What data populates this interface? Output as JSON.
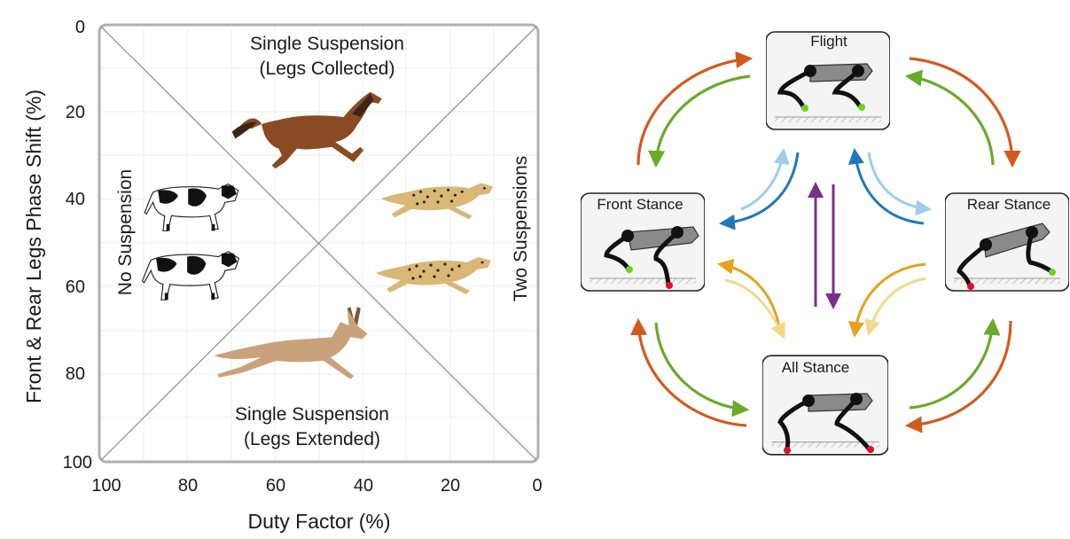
{
  "gait_plot": {
    "ylabel": "Front & Rear Legs Phase Shift (%)",
    "xlabel": "Duty Factor (%)",
    "y_ticks": [
      "0",
      "20",
      "40",
      "60",
      "80",
      "100"
    ],
    "x_ticks": [
      "100",
      "80",
      "60",
      "40",
      "20",
      "0"
    ],
    "regions": {
      "top_line1": "Single Suspension",
      "top_line2": "(Legs Collected)",
      "bottom_line1": "Single Suspension",
      "bottom_line2": "(Legs Extended)",
      "left": "No Suspension",
      "right": "Two Suspensions"
    },
    "animals": [
      "horse",
      "cow",
      "cow",
      "cheetah",
      "cheetah",
      "deer"
    ]
  },
  "state_machine": {
    "states": {
      "flight": "Flight",
      "front": "Front Stance",
      "rear": "Rear Stance",
      "all": "All Stance"
    },
    "colors": {
      "orange": "#d35a1f",
      "green": "#6aaa2a",
      "dark_blue": "#1f78b9",
      "light_blue": "#9fcdeb",
      "gold": "#e5a21f",
      "light_gold": "#f0d98a",
      "purple": "#7a2f8c",
      "contact_red": "#e0102a",
      "swing_green": "#6cd21e"
    }
  }
}
